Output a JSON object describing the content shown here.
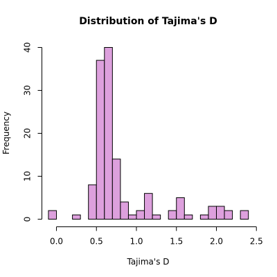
{
  "chart_data": {
    "type": "bar",
    "title": "Distribution of Tajima's D",
    "xlabel": "Tajima's D",
    "ylabel": "Frequency",
    "bin_width": 0.1,
    "bins": [
      {
        "x0": -0.1,
        "x1": 0.0,
        "count": 2
      },
      {
        "x0": 0.0,
        "x1": 0.1,
        "count": 0
      },
      {
        "x0": 0.1,
        "x1": 0.2,
        "count": 0
      },
      {
        "x0": 0.2,
        "x1": 0.3,
        "count": 1
      },
      {
        "x0": 0.3,
        "x1": 0.4,
        "count": 0
      },
      {
        "x0": 0.4,
        "x1": 0.5,
        "count": 8
      },
      {
        "x0": 0.5,
        "x1": 0.6,
        "count": 37
      },
      {
        "x0": 0.6,
        "x1": 0.7,
        "count": 40
      },
      {
        "x0": 0.7,
        "x1": 0.8,
        "count": 14
      },
      {
        "x0": 0.8,
        "x1": 0.9,
        "count": 4
      },
      {
        "x0": 0.9,
        "x1": 1.0,
        "count": 1
      },
      {
        "x0": 1.0,
        "x1": 1.1,
        "count": 2
      },
      {
        "x0": 1.1,
        "x1": 1.2,
        "count": 6
      },
      {
        "x0": 1.2,
        "x1": 1.3,
        "count": 1
      },
      {
        "x0": 1.3,
        "x1": 1.4,
        "count": 0
      },
      {
        "x0": 1.4,
        "x1": 1.5,
        "count": 2
      },
      {
        "x0": 1.5,
        "x1": 1.6,
        "count": 5
      },
      {
        "x0": 1.6,
        "x1": 1.7,
        "count": 1
      },
      {
        "x0": 1.7,
        "x1": 1.8,
        "count": 0
      },
      {
        "x0": 1.8,
        "x1": 1.9,
        "count": 1
      },
      {
        "x0": 1.9,
        "x1": 2.0,
        "count": 3
      },
      {
        "x0": 2.0,
        "x1": 2.1,
        "count": 3
      },
      {
        "x0": 2.1,
        "x1": 2.2,
        "count": 2
      },
      {
        "x0": 2.2,
        "x1": 2.3,
        "count": 0
      },
      {
        "x0": 2.3,
        "x1": 2.4,
        "count": 2
      }
    ],
    "xticks": [
      0.0,
      0.5,
      1.0,
      1.5,
      2.0,
      2.5
    ],
    "xtick_labels": [
      "0.0",
      "0.5",
      "1.0",
      "1.5",
      "2.0",
      "2.5"
    ],
    "yticks": [
      0,
      10,
      20,
      30,
      40
    ],
    "ytick_labels": [
      "0",
      "10",
      "20",
      "30",
      "40"
    ],
    "xlim": [
      -0.1,
      2.5
    ],
    "ylim": [
      0,
      40
    ],
    "bar_color": "#dda0dd",
    "edge_color": "#000000",
    "grid": false,
    "legend": "none"
  }
}
